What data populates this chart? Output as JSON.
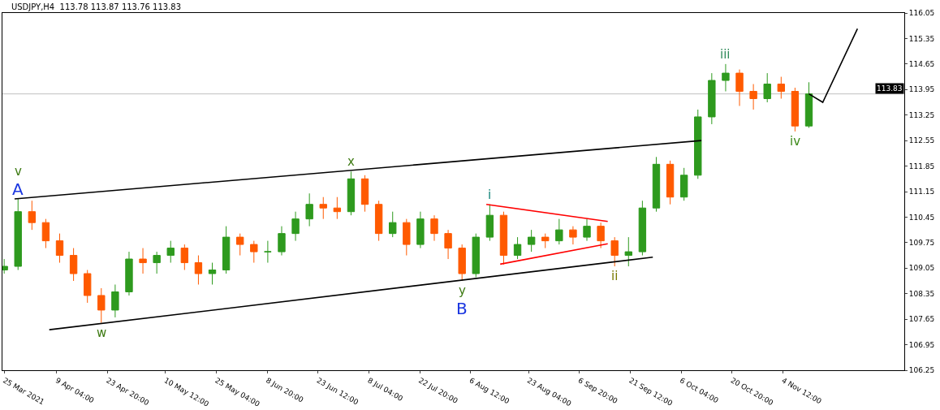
{
  "chart_data": {
    "type": "candlestick",
    "title": "USDJPY,H4  113.78 113.87 113.76 113.83",
    "x": [
      "2021-03-25",
      "2021-03-29",
      "2021-04-02",
      "2021-04-06",
      "2021-04-10",
      "2021-04-14",
      "2021-04-18",
      "2021-04-22",
      "2021-04-26",
      "2021-04-30",
      "2021-05-04",
      "2021-05-08",
      "2021-05-12",
      "2021-05-16",
      "2021-05-20",
      "2021-05-24",
      "2021-05-28",
      "2021-06-01",
      "2021-06-05",
      "2021-06-09",
      "2021-06-13",
      "2021-06-17",
      "2021-06-21",
      "2021-06-25",
      "2021-06-29",
      "2021-07-03",
      "2021-07-07",
      "2021-07-11",
      "2021-07-15",
      "2021-07-19",
      "2021-07-23",
      "2021-07-27",
      "2021-07-31",
      "2021-08-04",
      "2021-08-08",
      "2021-08-12",
      "2021-08-16",
      "2021-08-20",
      "2021-08-24",
      "2021-08-28",
      "2021-09-01",
      "2021-09-05",
      "2021-09-09",
      "2021-09-13",
      "2021-09-17",
      "2021-09-21",
      "2021-09-25",
      "2021-09-29",
      "2021-10-03",
      "2021-10-07",
      "2021-10-11",
      "2021-10-15",
      "2021-10-19",
      "2021-10-23",
      "2021-10-27",
      "2021-10-31",
      "2021-11-04",
      "2021-11-08",
      "2021-11-12"
    ],
    "ohlc": [
      [
        109.0,
        109.3,
        108.9,
        109.1
      ],
      [
        109.1,
        110.95,
        109.0,
        110.6
      ],
      [
        110.6,
        110.9,
        110.1,
        110.3
      ],
      [
        110.3,
        110.4,
        109.6,
        109.8
      ],
      [
        109.8,
        110.0,
        109.2,
        109.4
      ],
      [
        109.4,
        109.6,
        108.7,
        108.9
      ],
      [
        108.9,
        109.0,
        108.1,
        108.3
      ],
      [
        108.3,
        108.5,
        107.55,
        107.9
      ],
      [
        107.9,
        108.6,
        107.7,
        108.4
      ],
      [
        108.4,
        109.5,
        108.3,
        109.3
      ],
      [
        109.3,
        109.6,
        108.9,
        109.2
      ],
      [
        109.2,
        109.5,
        108.9,
        109.4
      ],
      [
        109.4,
        109.8,
        109.2,
        109.6
      ],
      [
        109.6,
        109.7,
        109.0,
        109.2
      ],
      [
        109.2,
        109.4,
        108.6,
        108.9
      ],
      [
        108.9,
        109.2,
        108.6,
        109.0
      ],
      [
        109.0,
        110.2,
        108.9,
        109.9
      ],
      [
        109.9,
        110.0,
        109.4,
        109.7
      ],
      [
        109.7,
        109.8,
        109.2,
        109.5
      ],
      [
        109.5,
        109.8,
        109.2,
        109.5
      ],
      [
        109.5,
        110.2,
        109.4,
        110.0
      ],
      [
        110.0,
        110.6,
        109.8,
        110.4
      ],
      [
        110.4,
        111.1,
        110.2,
        110.8
      ],
      [
        110.8,
        111.0,
        110.4,
        110.7
      ],
      [
        110.7,
        111.0,
        110.4,
        110.6
      ],
      [
        110.6,
        111.7,
        110.5,
        111.5
      ],
      [
        111.5,
        111.6,
        110.6,
        110.8
      ],
      [
        110.8,
        110.9,
        109.8,
        110.0
      ],
      [
        110.0,
        110.6,
        109.9,
        110.3
      ],
      [
        110.3,
        110.4,
        109.4,
        109.7
      ],
      [
        109.7,
        110.6,
        109.6,
        110.4
      ],
      [
        110.4,
        110.5,
        109.8,
        110.0
      ],
      [
        110.0,
        110.1,
        109.3,
        109.6
      ],
      [
        109.6,
        109.7,
        108.7,
        108.9
      ],
      [
        108.9,
        110.0,
        108.8,
        109.9
      ],
      [
        109.9,
        110.8,
        109.8,
        110.5
      ],
      [
        110.5,
        110.6,
        109.15,
        109.4
      ],
      [
        109.4,
        109.9,
        109.3,
        109.7
      ],
      [
        109.7,
        110.1,
        109.5,
        109.9
      ],
      [
        109.9,
        110.0,
        109.6,
        109.8
      ],
      [
        109.8,
        110.4,
        109.7,
        110.1
      ],
      [
        110.1,
        110.2,
        109.7,
        109.9
      ],
      [
        109.9,
        110.4,
        109.8,
        110.2
      ],
      [
        110.2,
        110.3,
        109.6,
        109.8
      ],
      [
        109.8,
        109.9,
        109.1,
        109.4
      ],
      [
        109.4,
        109.9,
        109.1,
        109.5
      ],
      [
        109.5,
        110.9,
        109.4,
        110.7
      ],
      [
        110.7,
        112.1,
        110.6,
        111.9
      ],
      [
        111.9,
        112.0,
        110.8,
        111.0
      ],
      [
        111.0,
        111.8,
        110.9,
        111.6
      ],
      [
        111.6,
        113.4,
        111.5,
        113.2
      ],
      [
        113.2,
        114.4,
        113.0,
        114.2
      ],
      [
        114.2,
        114.65,
        113.9,
        114.4
      ],
      [
        114.4,
        114.5,
        113.5,
        113.9
      ],
      [
        113.9,
        114.1,
        113.4,
        113.7
      ],
      [
        113.7,
        114.4,
        113.6,
        114.1
      ],
      [
        114.1,
        114.3,
        113.7,
        113.9
      ],
      [
        113.9,
        114.0,
        112.8,
        112.95
      ],
      [
        112.95,
        114.15,
        112.9,
        113.83
      ]
    ],
    "colors": [
      "#2e9a1e",
      "#2e9a1e",
      "#ff5a00",
      "#ff5a00",
      "#ff5a00",
      "#ff5a00",
      "#ff5a00",
      "#ff5a00",
      "#2e9a1e",
      "#2e9a1e",
      "#ff5a00",
      "#2e9a1e",
      "#2e9a1e",
      "#ff5a00",
      "#ff5a00",
      "#2e9a1e",
      "#2e9a1e",
      "#ff5a00",
      "#ff5a00",
      "#2e9a1e",
      "#2e9a1e",
      "#2e9a1e",
      "#2e9a1e",
      "#ff5a00",
      "#ff5a00",
      "#2e9a1e",
      "#ff5a00",
      "#ff5a00",
      "#2e9a1e",
      "#ff5a00",
      "#2e9a1e",
      "#ff5a00",
      "#ff5a00",
      "#ff5a00",
      "#2e9a1e",
      "#2e9a1e",
      "#ff5a00",
      "#2e9a1e",
      "#2e9a1e",
      "#ff5a00",
      "#2e9a1e",
      "#ff5a00",
      "#2e9a1e",
      "#ff5a00",
      "#ff5a00",
      "#2e9a1e",
      "#2e9a1e",
      "#2e9a1e",
      "#ff5a00",
      "#2e9a1e",
      "#2e9a1e",
      "#2e9a1e",
      "#2e9a1e",
      "#ff5a00",
      "#ff5a00",
      "#2e9a1e",
      "#ff5a00",
      "#ff5a00",
      "#2e9a1e"
    ],
    "series": [
      {
        "type": "line",
        "color": "#000000",
        "x": [
          "2021-03-28",
          "2021-10-12"
        ],
        "values": [
          110.95,
          112.55
        ]
      },
      {
        "type": "line",
        "color": "#000000",
        "x": [
          "2021-04-07",
          "2021-09-28"
        ],
        "values": [
          107.36,
          109.35
        ]
      },
      {
        "type": "line",
        "color": "#ff0000",
        "x": [
          "2021-08-11",
          "2021-09-15"
        ],
        "values": [
          110.8,
          110.33
        ]
      },
      {
        "type": "line",
        "color": "#ff0000",
        "x": [
          "2021-08-15",
          "2021-09-15"
        ],
        "values": [
          109.16,
          109.72
        ]
      },
      {
        "type": "line",
        "color": "#000000",
        "x": [
          "2021-11-12",
          "2021-11-16",
          "2021-11-26"
        ],
        "values": [
          113.83,
          113.6,
          115.62
        ]
      }
    ],
    "ref_lines": [
      {
        "axis": "y",
        "value": 113.83,
        "label": "113.83",
        "color": "#c0c0c0"
      }
    ],
    "annotations": [
      {
        "text": "A",
        "x": "2021-03-29",
        "y": 110.95
      },
      {
        "text": "v",
        "x": "2021-03-29",
        "y": 110.95
      },
      {
        "text": "w",
        "x": "2021-04-22",
        "y": 107.55
      },
      {
        "text": "x",
        "x": "2021-07-03",
        "y": 111.7
      },
      {
        "text": "y",
        "x": "2021-08-04",
        "y": 108.7
      },
      {
        "text": "B",
        "x": "2021-08-04",
        "y": 108.7
      },
      {
        "text": "i",
        "x": "2021-08-12",
        "y": 110.8
      },
      {
        "text": "ii",
        "x": "2021-09-17",
        "y": 109.1
      },
      {
        "text": "iii",
        "x": "2021-10-19",
        "y": 114.65
      },
      {
        "text": "iv",
        "x": "2021-11-08",
        "y": 112.8
      }
    ],
    "xlim": [
      "2021-03-24T12:00",
      "2021-12-09T12:00"
    ],
    "xticks": [
      {
        "value": "2021-03-25",
        "label": "25 Mar 2021"
      },
      {
        "value": "2021-04-09T04:00",
        "label": "9 Apr 04:00"
      },
      {
        "value": "2021-04-23T20:00",
        "label": "23 Apr 20:00"
      },
      {
        "value": "2021-05-10T12:00",
        "label": "10 May 12:00"
      },
      {
        "value": "2021-05-25T04:00",
        "label": "25 May 04:00"
      },
      {
        "value": "2021-06-08T20:00",
        "label": "8 Jun 20:00"
      },
      {
        "value": "2021-06-23T12:00",
        "label": "23 Jun 12:00"
      },
      {
        "value": "2021-07-08T04:00",
        "label": "8 Jul 04:00"
      },
      {
        "value": "2021-07-22T20:00",
        "label": "22 Jul 20:00"
      },
      {
        "value": "2021-08-06T12:00",
        "label": "6 Aug 12:00"
      },
      {
        "value": "2021-08-23T04:00",
        "label": "23 Aug 04:00"
      },
      {
        "value": "2021-09-06T20:00",
        "label": "6 Sep 20:00"
      },
      {
        "value": "2021-09-21T12:00",
        "label": "21 Sep 12:00"
      },
      {
        "value": "2021-10-06T04:00",
        "label": "6 Oct 04:00"
      },
      {
        "value": "2021-10-20T20:00",
        "label": "20 Oct 20:00"
      },
      {
        "value": "2021-11-04T12:00",
        "label": "4 Nov 12:00"
      }
    ],
    "ylim": [
      106.25,
      116.05
    ],
    "yticks": [
      106.25,
      106.95,
      107.65,
      108.35,
      109.05,
      109.75,
      110.45,
      111.15,
      111.85,
      112.55,
      113.25,
      113.95,
      114.65,
      115.35,
      116.05
    ],
    "grid": false
  }
}
